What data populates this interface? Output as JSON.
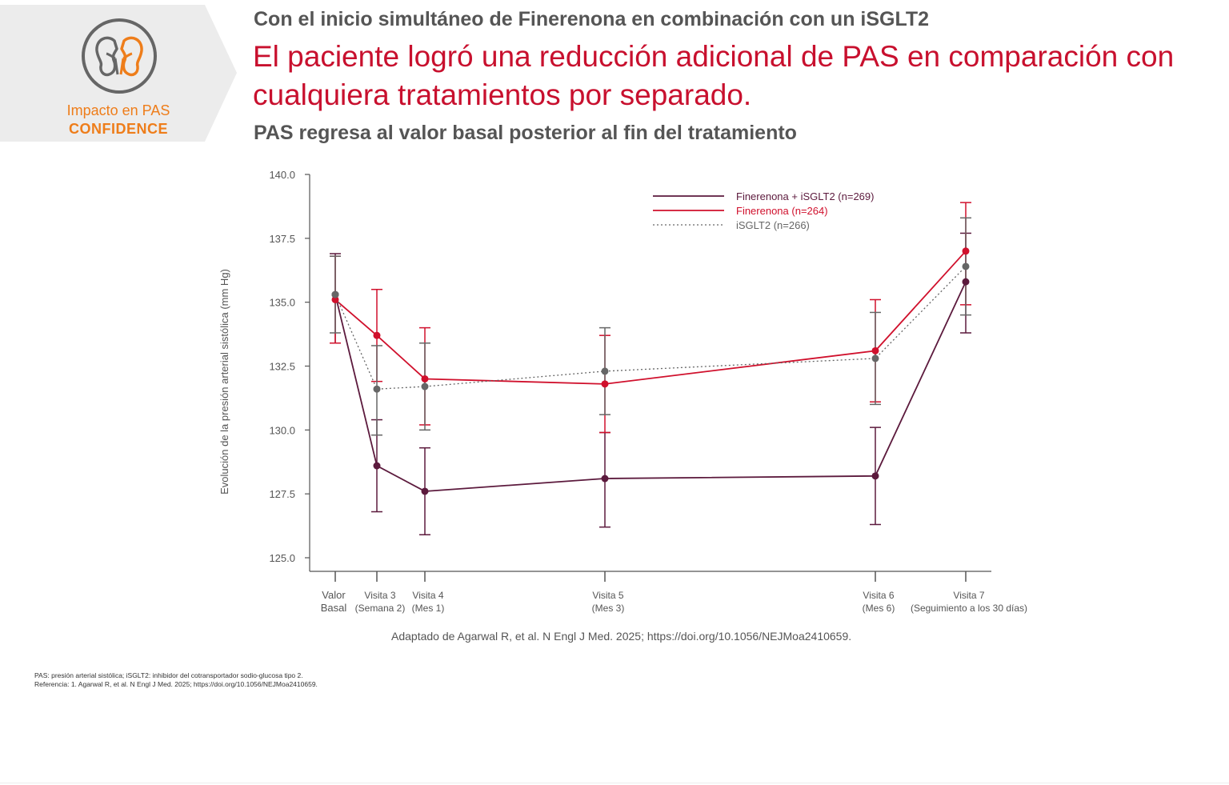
{
  "badge": {
    "line1": "Impacto en PAS",
    "line2": "CONFIDENCE",
    "icon": "kidneys-icon",
    "color": "#ee7d1a"
  },
  "heading": {
    "lead": "Con el inicio simultáneo de Finerenona en combinación con un iSGLT2",
    "main": "El paciente logró una reducción adicional de PAS en comparación con cualquiera tratamientos por separado.",
    "sub": "PAS regresa al valor basal posterior al fin del tratamiento"
  },
  "chart_data": {
    "type": "line",
    "ylabel": "Evolución de la presión arterial sistólica (mm Hg)",
    "ylim": [
      125,
      140
    ],
    "yticks": [
      "125.0",
      "127.5",
      "130.0",
      "132.5",
      "135.0",
      "137.5",
      "140.0"
    ],
    "x_positions": [
      0,
      0.5,
      1,
      3,
      6,
      7
    ],
    "categories": [
      [
        "Valor",
        "Basal"
      ],
      [
        "Visita 3",
        "(Semana 2)"
      ],
      [
        "Visita 4",
        "(Mes 1)"
      ],
      [
        "Visita 5",
        "(Mes 3)"
      ],
      [
        "Visita 6",
        "(Mes 6)"
      ],
      [
        "Visita 7",
        "(Seguimiento a los 30 días)"
      ]
    ],
    "legend_position": "top-right",
    "series": [
      {
        "name": "Finerenona + iSGLT2 (n=269)",
        "color": "#5c1a3d",
        "dash": false,
        "values": [
          135.3,
          128.6,
          127.6,
          128.1,
          128.2,
          135.8
        ],
        "lower": [
          133.4,
          126.8,
          125.9,
          126.2,
          126.3,
          133.8
        ],
        "upper": [
          136.9,
          130.4,
          129.3,
          129.9,
          130.1,
          137.7
        ]
      },
      {
        "name": "Finerenona (n=264)",
        "color": "#d0102c",
        "dash": false,
        "values": [
          135.1,
          133.7,
          132.0,
          131.8,
          133.1,
          137.0
        ],
        "lower": [
          133.4,
          131.9,
          130.2,
          129.9,
          131.1,
          134.9
        ],
        "upper": [
          136.8,
          135.5,
          134.0,
          133.7,
          135.1,
          138.9
        ]
      },
      {
        "name": "iSGLT2 (n=266)",
        "color": "#666666",
        "dash": true,
        "values": [
          135.3,
          131.6,
          131.7,
          132.3,
          132.8,
          136.4
        ],
        "lower": [
          133.8,
          129.8,
          130.0,
          130.6,
          131.0,
          134.5
        ],
        "upper": [
          136.8,
          133.3,
          133.4,
          134.0,
          134.6,
          138.3
        ]
      }
    ]
  },
  "source": "Adaptado de Agarwal R, et al. N Engl J Med. 2025; https://doi.org/10.1056/NEJMoa2410659.",
  "footnotes": {
    "line1": "PAS:  presión arterial sistólica; iSGLT2: inhibidor del cotransportador sodio-glucosa tipo 2.",
    "line2": "Referencia: 1. Agarwal R, et al. N Engl J Med. 2025; https://doi.org/10.1056/NEJMoa2410659."
  }
}
